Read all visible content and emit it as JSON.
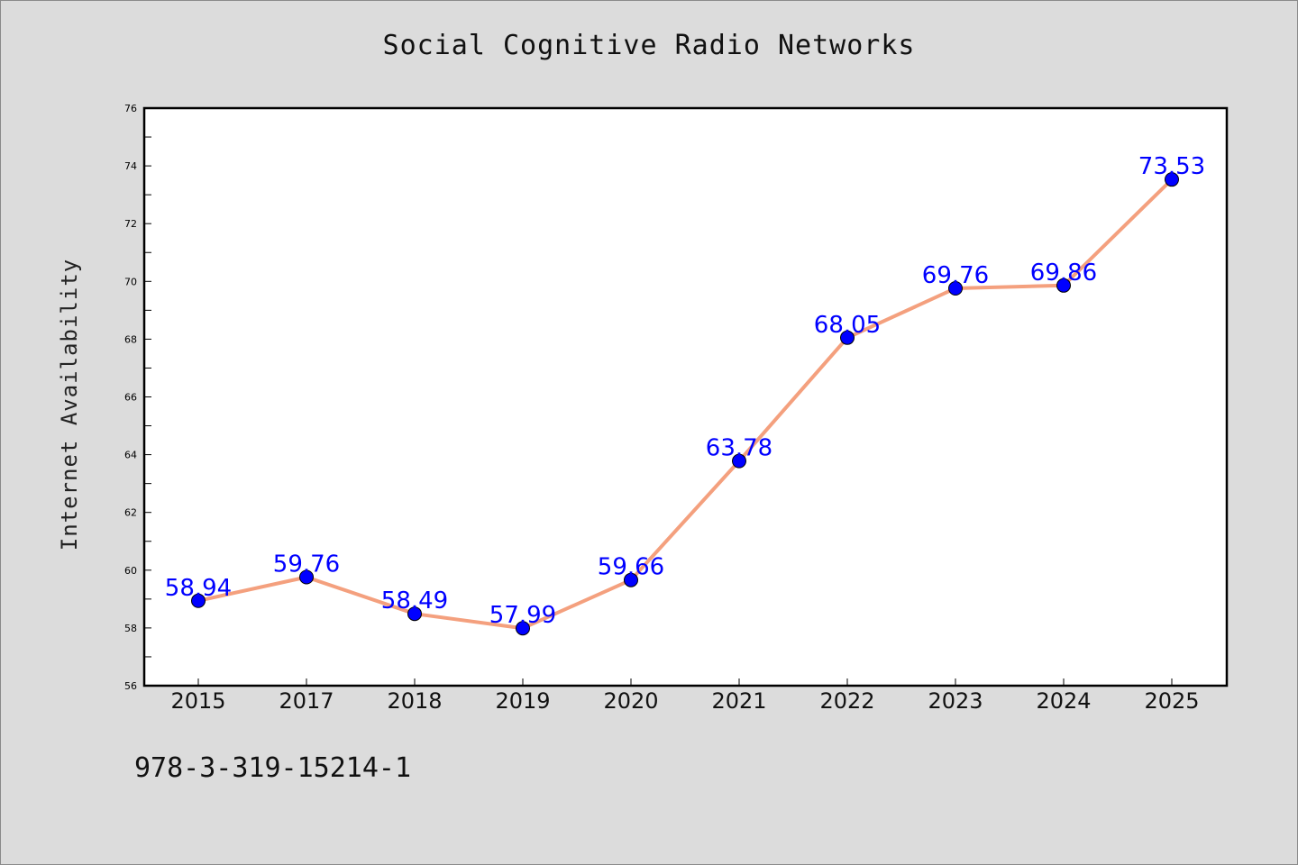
{
  "chart_data": {
    "type": "line",
    "title": "Social Cognitive Radio Networks",
    "xlabel": "",
    "ylabel": "Internet Availability",
    "categories": [
      "2015",
      "2017",
      "2018",
      "2019",
      "2020",
      "2021",
      "2022",
      "2023",
      "2024",
      "2025"
    ],
    "series": [
      {
        "values": [
          58.94,
          59.76,
          58.49,
          57.99,
          59.66,
          63.78,
          68.05,
          69.76,
          69.86,
          73.53
        ]
      }
    ],
    "data_labels": [
      "58.94",
      "59.76",
      "58.49",
      "57.99",
      "59.66",
      "63.78",
      "68.05",
      "69.76",
      "69.86",
      "73.53"
    ],
    "ylim": [
      56,
      76
    ],
    "y_ticks": [
      "56",
      "58",
      "60",
      "62",
      "64",
      "66",
      "68",
      "70",
      "72",
      "74",
      "76"
    ],
    "grid": false,
    "line_color": "#f4a07e",
    "marker_color": "#0000ff",
    "label_color": "#0000ff",
    "background_color": "#dcdcdc",
    "plot_background_color": "#ffffff"
  },
  "footnote": "978-3-319-15214-1"
}
